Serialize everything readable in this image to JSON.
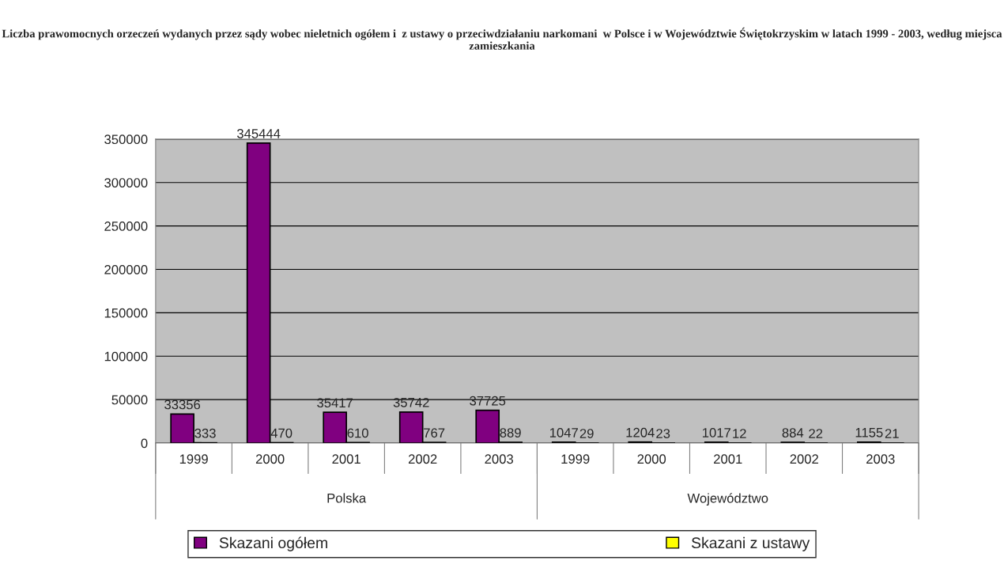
{
  "chart_data": {
    "type": "bar",
    "title": "Liczba prawomocnych orzeczeń wydanych przez sądy wobec nieletnich ogółem i  z ustawy o przeciwdziałaniu narkomani  w Polsce i w Województwie Świętokrzyskim w latach 1999 - 2003, według miejsca zamieszkania",
    "categories": [
      "1999",
      "2000",
      "2001",
      "2002",
      "2003",
      "1999",
      "2000",
      "2001",
      "2002",
      "2003"
    ],
    "annotations": [
      "Polska",
      "Województwo"
    ],
    "series": [
      {
        "name": "Skazani ogółem",
        "color": "#800080",
        "values": [
          33356,
          345444,
          35417,
          35742,
          37725,
          1047,
          1204,
          1017,
          884,
          1155
        ]
      },
      {
        "name": "Skazani z ustawy",
        "color": "#ffff00",
        "values": [
          333,
          470,
          610,
          767,
          889,
          29,
          23,
          12,
          22,
          21
        ]
      }
    ],
    "ylim": [
      0,
      350000
    ],
    "yticks": [
      0,
      50000,
      100000,
      150000,
      200000,
      250000,
      300000,
      350000
    ],
    "grid": "y",
    "data_labels": true,
    "legend": "bottom"
  }
}
